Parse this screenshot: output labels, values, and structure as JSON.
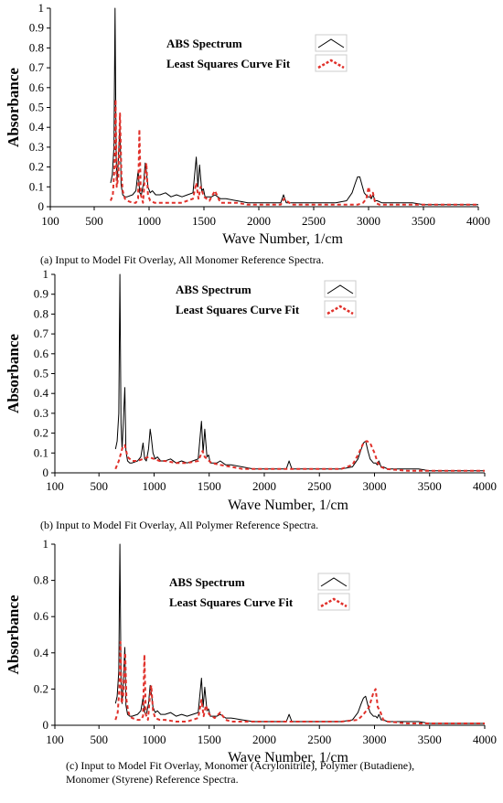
{
  "colors": {
    "abs": "#000000",
    "fit": "#e0302a",
    "axis": "#000000"
  },
  "chart_data": [
    {
      "type": "line",
      "caption": "(a) Input to Model Fit Overlay, All Monomer Reference Spectra.",
      "xlabel": "Wave Number,  1/cm",
      "ylabel": "Absorbance",
      "xlim": [
        100,
        4000
      ],
      "ylim": [
        0,
        1
      ],
      "xticks": [
        100,
        500,
        1000,
        1500,
        2000,
        2500,
        3000,
        3500,
        4000
      ],
      "yticks": [
        0,
        0.1,
        0.2,
        0.3,
        0.4,
        0.5,
        0.6,
        0.7,
        0.8,
        0.9,
        1
      ],
      "ytick_labels": [
        "0",
        "0.1",
        "0.2",
        "0.3",
        "0.4",
        "0.5",
        "0.6",
        "0.7",
        "0.8",
        "0.9",
        "1"
      ],
      "grid": false,
      "legend_position": "top-center",
      "series": [
        {
          "name": "ABS Spectrum",
          "style": "solid",
          "x": [
            650,
            665,
            680,
            690,
            700,
            710,
            720,
            735,
            745,
            760,
            780,
            800,
            850,
            880,
            900,
            915,
            930,
            950,
            965,
            975,
            990,
            1010,
            1030,
            1060,
            1100,
            1150,
            1200,
            1250,
            1300,
            1350,
            1400,
            1430,
            1445,
            1460,
            1480,
            1495,
            1510,
            1540,
            1570,
            1600,
            1650,
            1700,
            1800,
            1900,
            2000,
            2100,
            2200,
            2225,
            2250,
            2300,
            2400,
            2500,
            2600,
            2700,
            2800,
            2850,
            2880,
            2900,
            2920,
            2940,
            2960,
            2990,
            3010,
            3025,
            3040,
            3060,
            3080,
            3120,
            3200,
            3300,
            3400,
            3500,
            3600,
            3700,
            3800,
            3900,
            4000
          ],
          "y": [
            0.12,
            0.16,
            0.3,
            1.0,
            0.25,
            0.12,
            0.24,
            0.42,
            0.11,
            0.06,
            0.05,
            0.05,
            0.06,
            0.08,
            0.18,
            0.07,
            0.06,
            0.12,
            0.22,
            0.18,
            0.1,
            0.07,
            0.08,
            0.06,
            0.06,
            0.07,
            0.05,
            0.06,
            0.05,
            0.06,
            0.07,
            0.25,
            0.1,
            0.21,
            0.08,
            0.09,
            0.05,
            0.05,
            0.05,
            0.06,
            0.04,
            0.04,
            0.03,
            0.02,
            0.02,
            0.02,
            0.02,
            0.06,
            0.02,
            0.02,
            0.02,
            0.02,
            0.02,
            0.02,
            0.03,
            0.07,
            0.12,
            0.15,
            0.15,
            0.11,
            0.07,
            0.05,
            0.05,
            0.04,
            0.06,
            0.03,
            0.03,
            0.02,
            0.02,
            0.02,
            0.02,
            0.01,
            0.01,
            0.01,
            0.01,
            0.01,
            0.01
          ]
        },
        {
          "name": "Least Squares Curve Fit",
          "style": "dashed",
          "x": [
            650,
            670,
            685,
            695,
            705,
            720,
            735,
            748,
            760,
            780,
            800,
            850,
            880,
            900,
            912,
            925,
            945,
            960,
            975,
            990,
            1010,
            1050,
            1100,
            1200,
            1300,
            1400,
            1430,
            1450,
            1470,
            1500,
            1550,
            1600,
            1650,
            1700,
            1800,
            1900,
            2000,
            2200,
            2230,
            2300,
            2500,
            2700,
            2900,
            2950,
            2980,
            3000,
            3020,
            3040,
            3060,
            3100,
            3300,
            3500,
            3700,
            3900,
            4000
          ],
          "y": [
            0.03,
            0.06,
            0.2,
            0.54,
            0.1,
            0.15,
            0.47,
            0.16,
            0.08,
            0.04,
            0.03,
            0.02,
            0.02,
            0.04,
            0.39,
            0.06,
            0.02,
            0.14,
            0.22,
            0.06,
            0.03,
            0.02,
            0.02,
            0.02,
            0.02,
            0.04,
            0.12,
            0.04,
            0.1,
            0.05,
            0.03,
            0.08,
            0.02,
            0.02,
            0.02,
            0.01,
            0.01,
            0.01,
            0.04,
            0.01,
            0.01,
            0.01,
            0.01,
            0.02,
            0.04,
            0.1,
            0.05,
            0.07,
            0.02,
            0.01,
            0.01,
            0.01,
            0.01,
            0.01,
            0.01
          ]
        }
      ]
    },
    {
      "type": "line",
      "caption": "(b) Input to Model Fit Overlay, All Polymer Reference Spectra.",
      "xlabel": "Wave Number,  1/cm",
      "ylabel": "Absorbance",
      "xlim": [
        100,
        4000
      ],
      "ylim": [
        0,
        1
      ],
      "xticks": [
        100,
        500,
        1000,
        1500,
        2000,
        2500,
        3000,
        3500,
        4000
      ],
      "yticks": [
        0,
        0.1,
        0.2,
        0.3,
        0.4,
        0.5,
        0.6,
        0.7,
        0.8,
        0.9,
        1
      ],
      "ytick_labels": [
        "0",
        "0.1",
        "0.2",
        "0.3",
        "0.4",
        "0.5",
        "0.6",
        "0.7",
        "0.8",
        "0.9",
        "1"
      ],
      "grid": false,
      "legend_position": "top-center",
      "series": [
        {
          "name": "ABS Spectrum",
          "style": "solid",
          "x": [
            650,
            665,
            680,
            690,
            700,
            710,
            720,
            735,
            745,
            760,
            780,
            800,
            850,
            880,
            900,
            915,
            930,
            950,
            965,
            975,
            990,
            1010,
            1030,
            1060,
            1100,
            1150,
            1200,
            1250,
            1300,
            1350,
            1400,
            1430,
            1445,
            1460,
            1480,
            1495,
            1510,
            1540,
            1570,
            1600,
            1650,
            1700,
            1800,
            1900,
            2000,
            2100,
            2200,
            2225,
            2250,
            2300,
            2400,
            2500,
            2600,
            2700,
            2800,
            2850,
            2880,
            2900,
            2920,
            2940,
            2960,
            2990,
            3010,
            3025,
            3040,
            3060,
            3080,
            3120,
            3200,
            3300,
            3400,
            3500,
            3600,
            3700,
            3800,
            3900,
            4000
          ],
          "y": [
            0.12,
            0.16,
            0.3,
            1.0,
            0.25,
            0.12,
            0.24,
            0.43,
            0.11,
            0.06,
            0.05,
            0.05,
            0.06,
            0.08,
            0.15,
            0.07,
            0.06,
            0.12,
            0.22,
            0.18,
            0.1,
            0.07,
            0.08,
            0.06,
            0.06,
            0.07,
            0.05,
            0.06,
            0.05,
            0.06,
            0.07,
            0.26,
            0.1,
            0.22,
            0.08,
            0.09,
            0.05,
            0.05,
            0.05,
            0.06,
            0.04,
            0.04,
            0.03,
            0.02,
            0.02,
            0.02,
            0.02,
            0.06,
            0.02,
            0.02,
            0.02,
            0.02,
            0.02,
            0.02,
            0.03,
            0.07,
            0.12,
            0.15,
            0.16,
            0.11,
            0.07,
            0.05,
            0.05,
            0.04,
            0.06,
            0.03,
            0.03,
            0.02,
            0.02,
            0.02,
            0.02,
            0.01,
            0.01,
            0.01,
            0.01,
            0.01,
            0.01
          ]
        },
        {
          "name": "Least Squares Curve Fit",
          "style": "dashed",
          "x": [
            650,
            680,
            700,
            715,
            735,
            760,
            800,
            850,
            900,
            950,
            1000,
            1050,
            1100,
            1200,
            1300,
            1400,
            1440,
            1460,
            1480,
            1520,
            1600,
            1700,
            1800,
            2000,
            2200,
            2500,
            2700,
            2800,
            2850,
            2900,
            2930,
            2960,
            3000,
            3030,
            3060,
            3100,
            3300,
            3500,
            3700,
            4000
          ],
          "y": [
            0.02,
            0.06,
            0.1,
            0.13,
            0.14,
            0.08,
            0.06,
            0.06,
            0.07,
            0.08,
            0.07,
            0.06,
            0.06,
            0.05,
            0.05,
            0.06,
            0.11,
            0.08,
            0.07,
            0.05,
            0.04,
            0.03,
            0.02,
            0.02,
            0.02,
            0.02,
            0.02,
            0.04,
            0.09,
            0.15,
            0.16,
            0.15,
            0.1,
            0.05,
            0.03,
            0.02,
            0.01,
            0.01,
            0.01,
            0.01
          ]
        }
      ]
    },
    {
      "type": "line",
      "caption": "(c) Input to Model Fit Overlay, Monomer (Acrylonitrile), Polymer (Butadiene), Monomer (Styrene) Reference Spectra.",
      "xlabel": "Wave Number,  1/cm",
      "ylabel": "Absorbance",
      "xlim": [
        100,
        4000
      ],
      "ylim": [
        0,
        1
      ],
      "xticks": [
        100,
        500,
        1000,
        1500,
        2000,
        2500,
        3000,
        3500,
        4000
      ],
      "yticks": [
        0,
        0.2,
        0.4,
        0.6,
        0.8,
        1
      ],
      "ytick_labels": [
        "0",
        "0.2",
        "0.4",
        "0.6",
        "0.8",
        "1"
      ],
      "grid": false,
      "legend_position": "top-center",
      "series": [
        {
          "name": "ABS Spectrum",
          "style": "solid",
          "x": [
            650,
            665,
            680,
            690,
            700,
            710,
            720,
            735,
            745,
            760,
            780,
            800,
            850,
            880,
            900,
            915,
            930,
            950,
            965,
            975,
            990,
            1010,
            1030,
            1060,
            1100,
            1150,
            1200,
            1250,
            1300,
            1350,
            1400,
            1430,
            1445,
            1460,
            1480,
            1495,
            1510,
            1540,
            1570,
            1600,
            1650,
            1700,
            1800,
            1900,
            2000,
            2100,
            2200,
            2225,
            2250,
            2300,
            2400,
            2500,
            2600,
            2700,
            2800,
            2850,
            2880,
            2900,
            2920,
            2940,
            2960,
            2990,
            3010,
            3025,
            3040,
            3060,
            3080,
            3120,
            3200,
            3300,
            3400,
            3500,
            3600,
            3700,
            3800,
            3900,
            4000
          ],
          "y": [
            0.12,
            0.16,
            0.3,
            1.0,
            0.25,
            0.12,
            0.24,
            0.43,
            0.11,
            0.06,
            0.05,
            0.05,
            0.06,
            0.08,
            0.15,
            0.07,
            0.06,
            0.12,
            0.22,
            0.18,
            0.1,
            0.07,
            0.08,
            0.06,
            0.06,
            0.07,
            0.05,
            0.06,
            0.05,
            0.06,
            0.07,
            0.26,
            0.1,
            0.21,
            0.08,
            0.09,
            0.05,
            0.05,
            0.05,
            0.06,
            0.04,
            0.04,
            0.03,
            0.02,
            0.02,
            0.02,
            0.02,
            0.06,
            0.02,
            0.02,
            0.02,
            0.02,
            0.02,
            0.02,
            0.03,
            0.07,
            0.12,
            0.15,
            0.16,
            0.11,
            0.07,
            0.05,
            0.05,
            0.04,
            0.06,
            0.03,
            0.03,
            0.02,
            0.02,
            0.02,
            0.02,
            0.01,
            0.01,
            0.01,
            0.01,
            0.01,
            0.01
          ]
        },
        {
          "name": "Least Squares Curve Fit",
          "style": "dashed",
          "x": [
            650,
            670,
            685,
            695,
            705,
            720,
            738,
            750,
            765,
            780,
            800,
            850,
            880,
            900,
            912,
            925,
            945,
            960,
            975,
            990,
            1010,
            1050,
            1100,
            1200,
            1300,
            1400,
            1430,
            1450,
            1470,
            1500,
            1550,
            1600,
            1650,
            1700,
            1800,
            2000,
            2200,
            2500,
            2700,
            2850,
            2900,
            2950,
            2990,
            3010,
            3030,
            3050,
            3080,
            3120,
            3300,
            3500,
            3700,
            4000
          ],
          "y": [
            0.03,
            0.07,
            0.2,
            0.46,
            0.12,
            0.16,
            0.4,
            0.14,
            0.08,
            0.05,
            0.04,
            0.03,
            0.03,
            0.05,
            0.39,
            0.06,
            0.03,
            0.14,
            0.22,
            0.08,
            0.04,
            0.03,
            0.03,
            0.02,
            0.02,
            0.04,
            0.14,
            0.05,
            0.11,
            0.06,
            0.04,
            0.07,
            0.03,
            0.02,
            0.02,
            0.02,
            0.02,
            0.02,
            0.02,
            0.03,
            0.06,
            0.1,
            0.18,
            0.2,
            0.1,
            0.08,
            0.03,
            0.02,
            0.01,
            0.01,
            0.01,
            0.01
          ]
        }
      ]
    }
  ]
}
